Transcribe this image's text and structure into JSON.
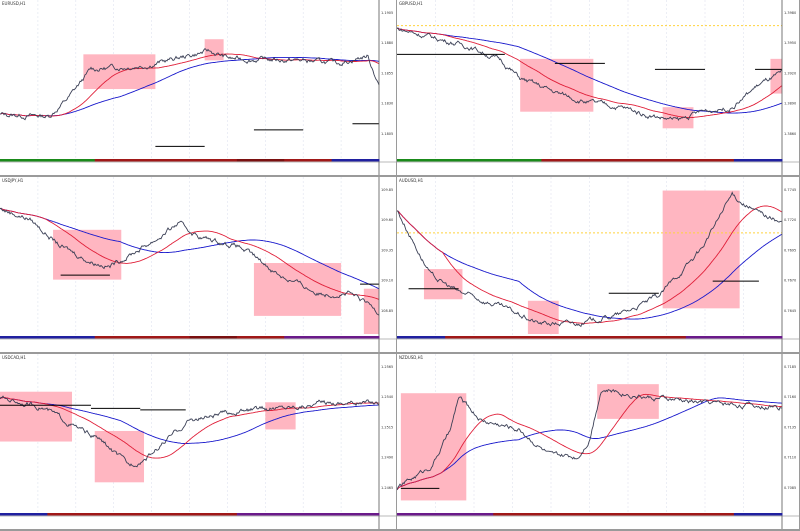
{
  "colors": {
    "zone": "#ffb6c1",
    "price": "#3a3f55",
    "ma_fast": "#e0203a",
    "ma_slow": "#1a1acc",
    "level": "#000000",
    "marker": "#ffd23c",
    "grid": "#dfe3ef"
  },
  "panels": [
    {
      "title": "EURUSD,H1",
      "anchors": [
        [
          0,
          28
        ],
        [
          13,
          27
        ],
        [
          18,
          39
        ],
        [
          24,
          58
        ],
        [
          39,
          61
        ],
        [
          55,
          70
        ],
        [
          61,
          65
        ],
        [
          79,
          64
        ],
        [
          89,
          62
        ],
        [
          97,
          67
        ],
        [
          100,
          48
        ]
      ],
      "zones": [
        [
          22,
          41,
          45,
          68
        ],
        [
          54,
          59,
          64,
          78
        ]
      ],
      "levels": [
        [
          41,
          54,
          7
        ],
        [
          67,
          80,
          18
        ],
        [
          93,
          100,
          22
        ]
      ],
      "marker_line": null,
      "price_ticks": [
        "1.1905",
        "1.1880",
        "1.1855",
        "1.1830",
        "1.1805"
      ],
      "session_colors": [
        "#1a8a1a",
        "#1a8a1a",
        "#a01818",
        "#a01818",
        "#a01818",
        "#7a1010",
        "#a01818",
        "#2020a0"
      ]
    },
    {
      "title": "GBPUSD,H1",
      "anchors": [
        [
          0,
          85
        ],
        [
          19,
          73
        ],
        [
          27,
          64
        ],
        [
          32,
          52
        ],
        [
          42,
          42
        ],
        [
          50,
          36
        ],
        [
          58,
          33
        ],
        [
          65,
          28
        ],
        [
          73,
          24
        ],
        [
          79,
          30
        ],
        [
          87,
          33
        ],
        [
          94,
          48
        ],
        [
          100,
          55
        ]
      ],
      "zones": [
        [
          32,
          51,
          30,
          65
        ],
        [
          69,
          77,
          19,
          33
        ],
        [
          97,
          100,
          42,
          65
        ]
      ],
      "levels": [
        [
          0,
          28,
          68
        ],
        [
          41,
          54,
          62
        ],
        [
          67,
          80,
          58
        ],
        [
          93,
          100,
          58
        ]
      ],
      "marker_line": 87,
      "price_ticks": [
        "1.3980",
        "1.3950",
        "1.3920",
        "1.3890",
        "1.3860"
      ],
      "session_colors": [
        "#1a8a1a",
        "#1a8a1a",
        "#1a8a1a",
        "#a01818",
        "#a01818",
        "#a01818",
        "#a01818",
        "#2020a0"
      ]
    },
    {
      "title": "USDJPY,H1",
      "anchors": [
        [
          0,
          83
        ],
        [
          8,
          76
        ],
        [
          16,
          58
        ],
        [
          24,
          48
        ],
        [
          29,
          45
        ],
        [
          34,
          52
        ],
        [
          42,
          64
        ],
        [
          47,
          73
        ],
        [
          53,
          64
        ],
        [
          63,
          58
        ],
        [
          74,
          39
        ],
        [
          84,
          27
        ],
        [
          92,
          27
        ],
        [
          100,
          15
        ]
      ],
      "zones": [
        [
          14,
          32,
          36,
          69
        ],
        [
          67,
          90,
          12,
          47
        ],
        [
          96,
          100,
          0,
          30
        ]
      ],
      "levels": [
        [
          16,
          29,
          39
        ],
        [
          95,
          100,
          33
        ]
      ],
      "marker_line": null,
      "price_ticks": [
        "109.85",
        "109.60",
        "109.35",
        "109.10",
        "108.85"
      ],
      "session_colors": [
        "#2020a0",
        "#2020a0",
        "#a01818",
        "#a01818",
        "#7a1010",
        "#a01818",
        "#6a1a8a",
        "#6a1a8a"
      ]
    },
    {
      "title": "AUDUSD,H1",
      "anchors": [
        [
          0,
          82
        ],
        [
          9,
          38
        ],
        [
          16,
          28
        ],
        [
          26,
          19
        ],
        [
          37,
          7
        ],
        [
          47,
          7
        ],
        [
          58,
          13
        ],
        [
          68,
          25
        ],
        [
          79,
          56
        ],
        [
          87,
          92
        ],
        [
          94,
          80
        ],
        [
          100,
          74
        ]
      ],
      "zones": [
        [
          7,
          17,
          23,
          43
        ],
        [
          34,
          42,
          0,
          22
        ],
        [
          69,
          89,
          17,
          95
        ]
      ],
      "levels": [
        [
          3,
          16,
          30
        ],
        [
          55,
          68,
          27
        ],
        [
          82,
          94,
          35
        ]
      ],
      "marker_line": 67,
      "price_ticks": [
        "0.7745",
        "0.7720",
        "0.7695",
        "0.7670",
        "0.7645"
      ],
      "session_colors": [
        "#2020a0",
        "#a01818",
        "#a01818",
        "#a01818",
        "#a01818",
        "#a01818",
        "#6a1a8a",
        "#6a1a8a"
      ]
    },
    {
      "title": "USDCAD,H1",
      "anchors": [
        [
          0,
          75
        ],
        [
          11,
          69
        ],
        [
          21,
          54
        ],
        [
          26,
          48
        ],
        [
          34,
          30
        ],
        [
          39,
          36
        ],
        [
          50,
          60
        ],
        [
          63,
          66
        ],
        [
          76,
          69
        ],
        [
          87,
          72
        ],
        [
          100,
          72
        ]
      ],
      "zones": [
        [
          0,
          19,
          46,
          79
        ],
        [
          25,
          38,
          19,
          53
        ],
        [
          70,
          78,
          54,
          72
        ]
      ],
      "levels": [
        [
          0,
          24,
          70
        ],
        [
          24,
          37,
          68
        ],
        [
          37,
          49,
          67
        ]
      ],
      "marker_line": null,
      "price_ticks": [
        "1.2565",
        "1.2540",
        "1.2515",
        "1.2490",
        "1.2465"
      ],
      "session_colors": [
        "#2020a0",
        "#a01818",
        "#a01818",
        "#a01818",
        "#a01818",
        "#6a1a8a",
        "#6a1a8a",
        "#6a1a8a"
      ]
    },
    {
      "title": "NZDUSD,H1",
      "anchors": [
        [
          0,
          15
        ],
        [
          9,
          30
        ],
        [
          14,
          54
        ],
        [
          16,
          75
        ],
        [
          22,
          60
        ],
        [
          32,
          54
        ],
        [
          40,
          36
        ],
        [
          47,
          36
        ],
        [
          50,
          48
        ],
        [
          53,
          81
        ],
        [
          66,
          75
        ],
        [
          79,
          72
        ],
        [
          100,
          69
        ]
      ],
      "zones": [
        [
          1,
          18,
          7,
          78
        ],
        [
          52,
          68,
          61,
          84
        ]
      ],
      "levels": [
        [
          1,
          11,
          15
        ]
      ],
      "marker_line": null,
      "price_ticks": [
        "0.7185",
        "0.7160",
        "0.7135",
        "0.7110",
        "0.7085"
      ],
      "session_colors": [
        "#6a1a8a",
        "#6a1a8a",
        "#a01818",
        "#a01818",
        "#a01818",
        "#a01818",
        "#a01818",
        "#2020a0"
      ]
    }
  ]
}
